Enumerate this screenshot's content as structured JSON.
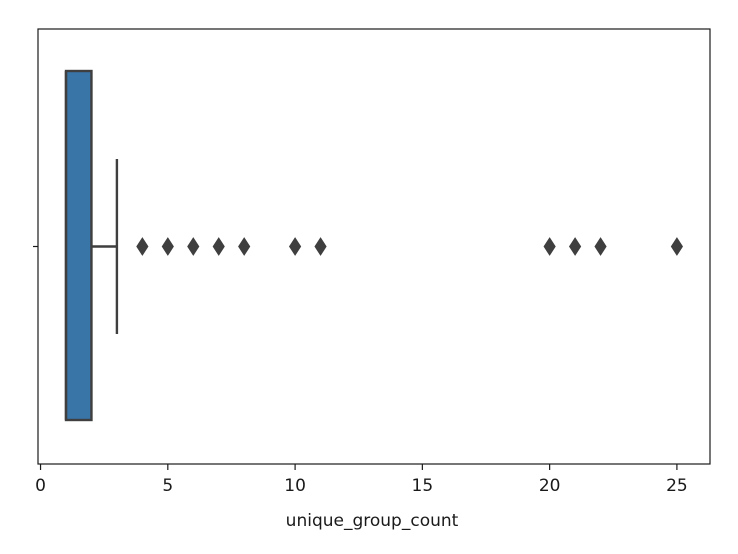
{
  "chart_data": {
    "type": "boxplot",
    "orientation": "horizontal",
    "title": "",
    "xlabel": "unique_group_count",
    "ylabel": "",
    "xlim": [
      -0.1,
      26.3
    ],
    "xticks": [
      0,
      5,
      10,
      15,
      20,
      25
    ],
    "xtick_labels": [
      "0",
      "5",
      "10",
      "15",
      "20",
      "25"
    ],
    "box": {
      "q1": 1,
      "median": 1,
      "q3": 2,
      "whisker_low": 1,
      "whisker_high": 3
    },
    "outliers": [
      4,
      5,
      6,
      7,
      8,
      10,
      11,
      20,
      21,
      22,
      25
    ],
    "grid": false,
    "colors": {
      "box_fill": "#3a75a8",
      "line": "#3f3f3f",
      "outlier": "#3f3f3f",
      "axes": "#1a1a1a",
      "background": "#ffffff"
    }
  }
}
